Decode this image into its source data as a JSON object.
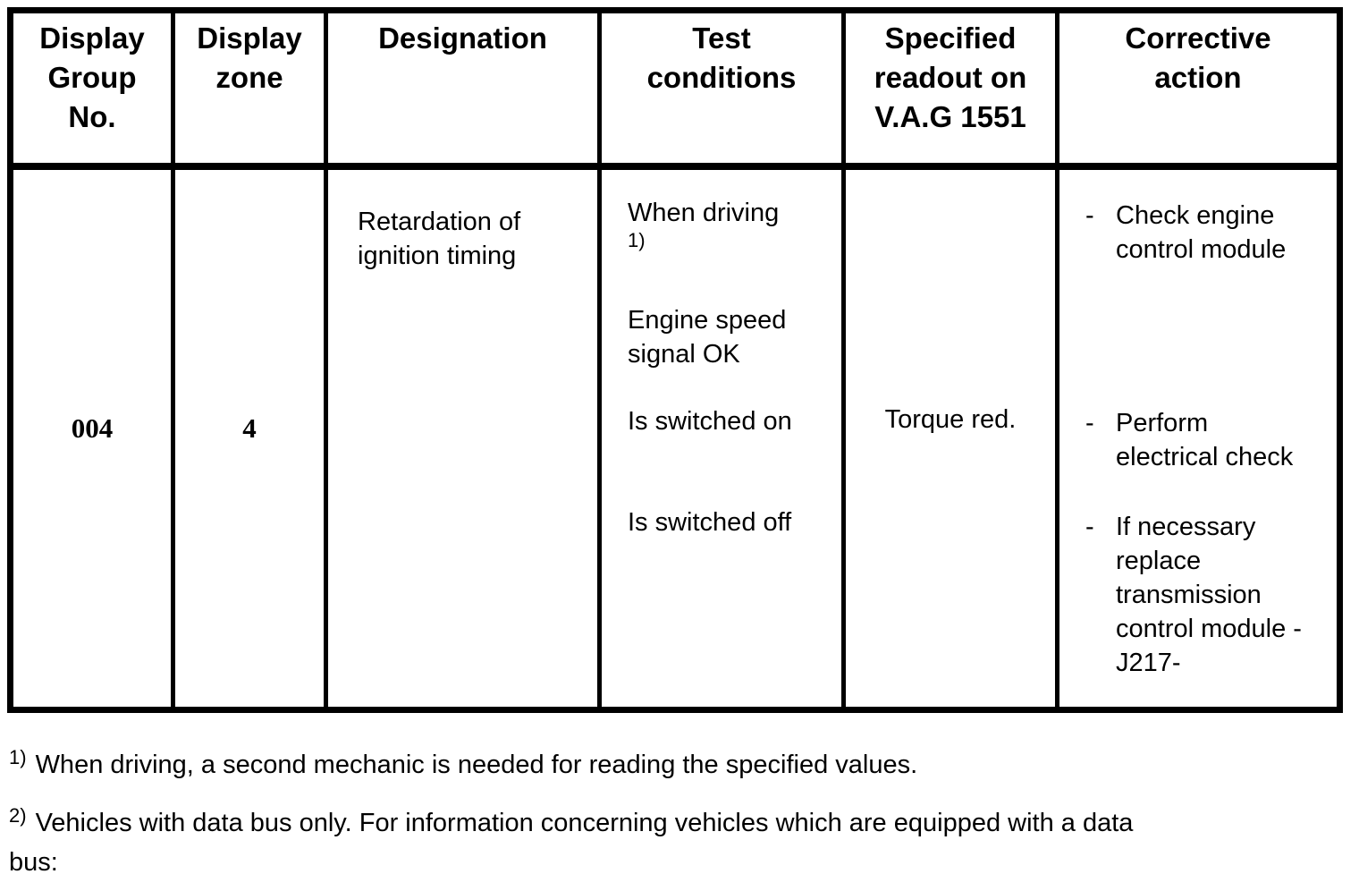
{
  "table": {
    "headers": [
      "Display\nGroup\nNo.",
      "Display\nzone",
      "Designation",
      "Test\nconditions",
      "Specified\nreadout on\nV.A.G 1551",
      "Corrective\naction"
    ],
    "row": {
      "display_group_no": "004",
      "display_zone": "4",
      "designation": "Retardation of\nignition timing",
      "test_conditions": {
        "condition_1": "When driving",
        "condition_1_footnote_ref": "1)",
        "condition_2": "Engine speed\nsignal OK",
        "condition_3": "Is switched on",
        "condition_4": "Is switched off"
      },
      "specified_readout": "Torque red.",
      "corrective_actions": [
        {
          "dash": "-",
          "text": "Check engine\ncontrol module"
        },
        {
          "dash": "-",
          "text": "Perform\nelectrical check"
        },
        {
          "dash": "-",
          "text": "If necessary\nreplace\ntransmission\ncontrol module -\nJ217-"
        }
      ]
    }
  },
  "footnotes": [
    {
      "marker": "1)",
      "text": "When driving, a second mechanic is needed for reading the specified values."
    },
    {
      "marker": "2)",
      "text": "Vehicles with data bus only. For information concerning vehicles which are equipped with a data\nbus:"
    }
  ]
}
